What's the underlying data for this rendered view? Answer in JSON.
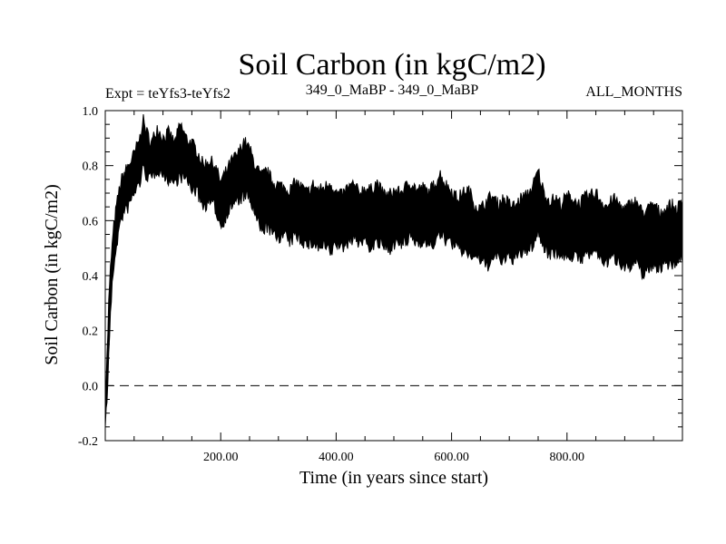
{
  "chart_data": {
    "type": "line",
    "title": "Soil Carbon (in kgC/m2)",
    "subtitle_left": "Expt = teYfs3-teYfs2",
    "subtitle_center": "349_0_MaBP - 349_0_MaBP",
    "subtitle_right": "ALL_MONTHS",
    "xlabel": "Time (in years since start)",
    "ylabel": "Soil Carbon (in kgC/m2)",
    "xlim": [
      0,
      1000
    ],
    "ylim": [
      -0.2,
      1.0
    ],
    "x_ticks": [
      {
        "value": 200,
        "label": "200.00"
      },
      {
        "value": 400,
        "label": "400.00"
      },
      {
        "value": 600,
        "label": "600.00"
      },
      {
        "value": 800,
        "label": "800.00"
      }
    ],
    "y_ticks": [
      {
        "value": -0.2,
        "label": "-0.2"
      },
      {
        "value": 0.0,
        "label": "0.0"
      },
      {
        "value": 0.2,
        "label": "0.2"
      },
      {
        "value": 0.4,
        "label": "0.4"
      },
      {
        "value": 0.6,
        "label": "0.6"
      },
      {
        "value": 0.8,
        "label": "0.8"
      },
      {
        "value": 1.0,
        "label": "1.0"
      }
    ],
    "reference_line": {
      "y": 0.0,
      "style": "dashed"
    },
    "series": [
      {
        "name": "Soil Carbon",
        "color": "#000000",
        "envelope": true,
        "x": [
          0,
          3,
          6,
          10,
          15,
          20,
          25,
          30,
          40,
          50,
          60,
          65,
          70,
          80,
          90,
          100,
          110,
          120,
          130,
          140,
          150,
          160,
          170,
          180,
          190,
          200,
          210,
          220,
          230,
          240,
          250,
          260,
          270,
          280,
          290,
          300,
          310,
          320,
          330,
          340,
          350,
          360,
          370,
          380,
          390,
          400,
          410,
          420,
          430,
          440,
          450,
          460,
          470,
          480,
          490,
          500,
          510,
          520,
          530,
          540,
          550,
          560,
          570,
          580,
          590,
          600,
          610,
          620,
          630,
          640,
          650,
          660,
          670,
          680,
          690,
          700,
          710,
          720,
          730,
          740,
          750,
          760,
          770,
          780,
          790,
          800,
          810,
          820,
          830,
          840,
          850,
          860,
          870,
          880,
          890,
          900,
          910,
          920,
          930,
          940,
          950,
          960,
          970,
          980,
          990,
          1000
        ],
        "upper": [
          -0.05,
          0.1,
          0.3,
          0.46,
          0.58,
          0.66,
          0.72,
          0.76,
          0.8,
          0.84,
          0.9,
          0.97,
          0.93,
          0.88,
          0.94,
          0.9,
          0.92,
          0.88,
          0.95,
          0.9,
          0.88,
          0.85,
          0.8,
          0.82,
          0.8,
          0.74,
          0.78,
          0.82,
          0.84,
          0.89,
          0.86,
          0.8,
          0.76,
          0.78,
          0.74,
          0.73,
          0.72,
          0.71,
          0.74,
          0.72,
          0.7,
          0.73,
          0.71,
          0.72,
          0.74,
          0.7,
          0.69,
          0.72,
          0.73,
          0.7,
          0.72,
          0.71,
          0.74,
          0.7,
          0.69,
          0.71,
          0.7,
          0.72,
          0.74,
          0.71,
          0.72,
          0.7,
          0.73,
          0.77,
          0.73,
          0.71,
          0.68,
          0.7,
          0.71,
          0.66,
          0.64,
          0.67,
          0.69,
          0.66,
          0.68,
          0.66,
          0.65,
          0.68,
          0.69,
          0.72,
          0.78,
          0.7,
          0.67,
          0.68,
          0.66,
          0.69,
          0.68,
          0.66,
          0.68,
          0.69,
          0.7,
          0.67,
          0.65,
          0.68,
          0.66,
          0.64,
          0.66,
          0.67,
          0.63,
          0.64,
          0.66,
          0.63,
          0.64,
          0.66,
          0.64,
          0.67
        ],
        "lower": [
          -0.13,
          -0.06,
          0.12,
          0.3,
          0.44,
          0.52,
          0.58,
          0.62,
          0.65,
          0.7,
          0.74,
          0.79,
          0.77,
          0.75,
          0.79,
          0.77,
          0.75,
          0.74,
          0.76,
          0.75,
          0.72,
          0.7,
          0.65,
          0.67,
          0.65,
          0.58,
          0.62,
          0.66,
          0.67,
          0.69,
          0.68,
          0.62,
          0.56,
          0.58,
          0.55,
          0.54,
          0.55,
          0.52,
          0.55,
          0.53,
          0.51,
          0.52,
          0.5,
          0.51,
          0.48,
          0.52,
          0.5,
          0.52,
          0.54,
          0.52,
          0.53,
          0.5,
          0.52,
          0.51,
          0.49,
          0.52,
          0.51,
          0.52,
          0.54,
          0.52,
          0.53,
          0.51,
          0.52,
          0.55,
          0.53,
          0.52,
          0.5,
          0.49,
          0.48,
          0.47,
          0.46,
          0.43,
          0.46,
          0.47,
          0.45,
          0.47,
          0.46,
          0.48,
          0.49,
          0.51,
          0.56,
          0.5,
          0.48,
          0.49,
          0.47,
          0.48,
          0.47,
          0.46,
          0.47,
          0.48,
          0.49,
          0.46,
          0.45,
          0.47,
          0.45,
          0.44,
          0.43,
          0.45,
          0.41,
          0.42,
          0.44,
          0.43,
          0.44,
          0.45,
          0.44,
          0.47
        ]
      }
    ]
  }
}
